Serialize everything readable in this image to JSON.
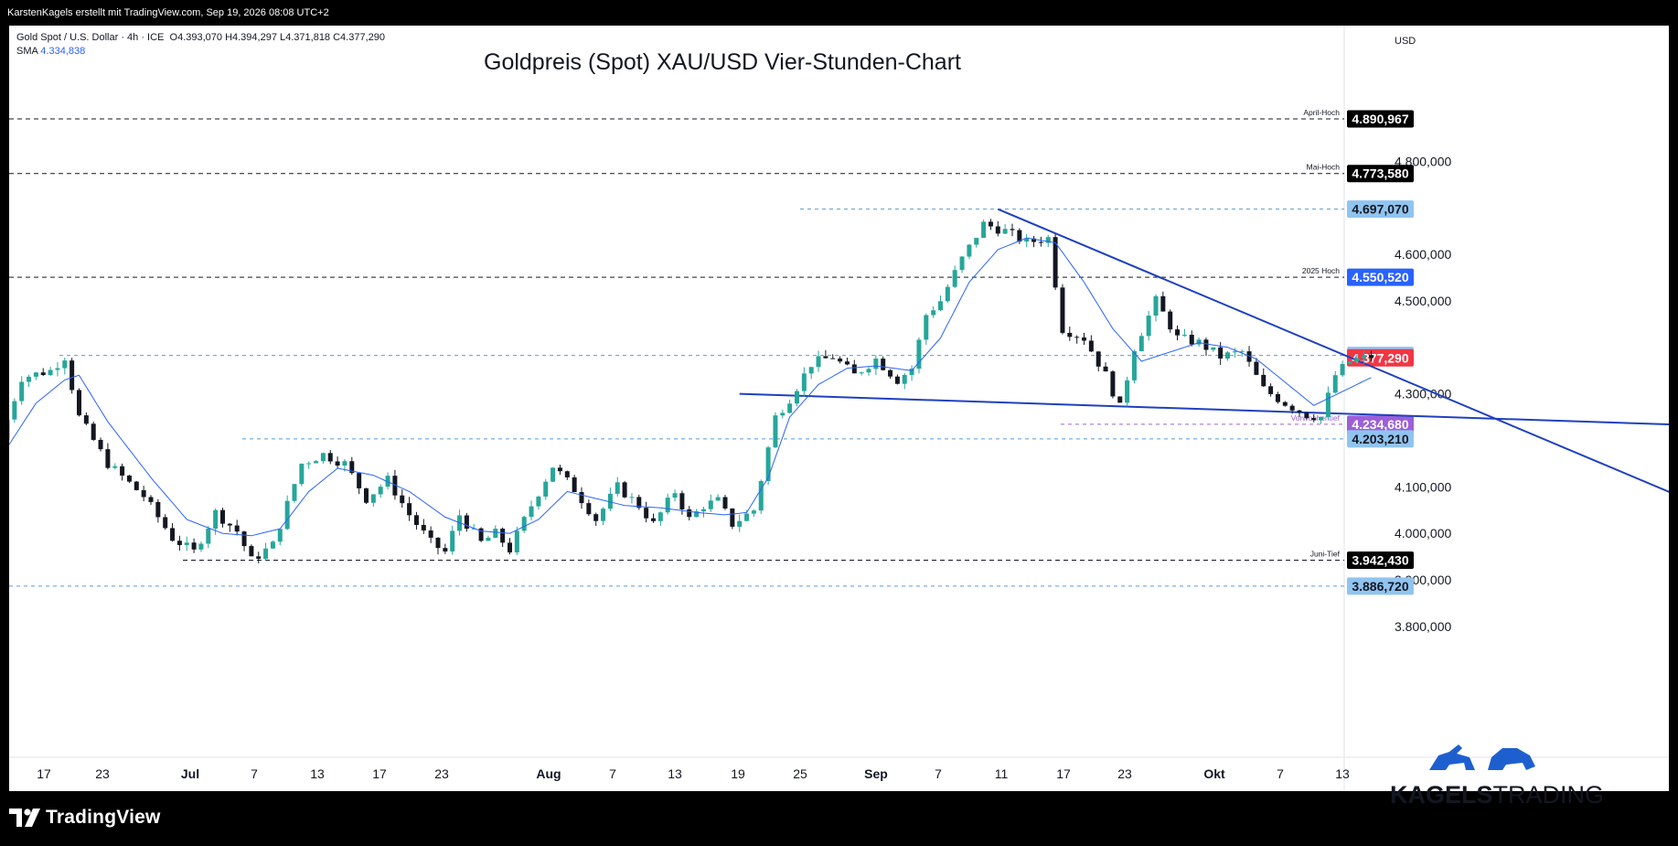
{
  "header": {
    "attribution": "KarstenKagels erstellt mit TradingView.com, Sep 19, 2026 08:08 UTC+2"
  },
  "legend": {
    "symbol": "Gold Spot / U.S. Dollar · 4h · ICE",
    "ohlc": "O4.393,070  H4.394,297  L4.371,818  C4.377,290",
    "sma_label": "SMA",
    "sma_value": "4.334,838"
  },
  "footer": {
    "tradingview_label": "TradingView"
  },
  "brand": {
    "part1": "KAGELS",
    "part2": "TRADING"
  },
  "colors": {
    "bull": "#26a69a",
    "bear": "#131722",
    "sma": "#2962ff",
    "trend": "#1e40c0",
    "dark_label": "#000000",
    "blue_label": "#2962ff",
    "lightblue_label": "#90c4f0",
    "red_label": "#f23645",
    "purple_label": "#9c5fd8"
  },
  "chart_data": {
    "type": "candlestick",
    "title": "Goldpreis (Spot) XAU/USD Vier-Stunden-Chart",
    "currency": "USD",
    "ylim": [
      3750,
      5000
    ],
    "x_ticks": [
      {
        "label": "17",
        "bold": false
      },
      {
        "label": "23",
        "bold": false
      },
      {
        "label": "Jul",
        "bold": true
      },
      {
        "label": "7",
        "bold": false
      },
      {
        "label": "13",
        "bold": false
      },
      {
        "label": "17",
        "bold": false
      },
      {
        "label": "23",
        "bold": false
      },
      {
        "label": "Aug",
        "bold": true
      },
      {
        "label": "7",
        "bold": false
      },
      {
        "label": "13",
        "bold": false
      },
      {
        "label": "19",
        "bold": false
      },
      {
        "label": "25",
        "bold": false
      },
      {
        "label": "Sep",
        "bold": true
      },
      {
        "label": "7",
        "bold": false
      },
      {
        "label": "11",
        "bold": false
      },
      {
        "label": "17",
        "bold": false
      },
      {
        "label": "23",
        "bold": false
      },
      {
        "label": "Okt",
        "bold": true
      },
      {
        "label": "7",
        "bold": false
      },
      {
        "label": "13",
        "bold": false
      }
    ],
    "y_ticks": [
      {
        "label": "4.800,000",
        "value": 4800
      },
      {
        "label": "4.600,000",
        "value": 4600
      },
      {
        "label": "4.500,000",
        "value": 4500
      },
      {
        "label": "4.300,000",
        "value": 4300
      },
      {
        "label": "4.100,000",
        "value": 4100
      },
      {
        "label": "4.000,000",
        "value": 4000
      },
      {
        "label": "3.900,000",
        "value": 3900
      },
      {
        "label": "3.800,000",
        "value": 3800
      }
    ],
    "levels": [
      {
        "value": 4890.967,
        "label": "4.890,967",
        "note": "April-Hoch",
        "style": "black",
        "box": "dark"
      },
      {
        "value": 4773.58,
        "label": "4.773,580",
        "note": "Mai-Hoch",
        "style": "black",
        "box": "dark"
      },
      {
        "value": 4697.07,
        "label": "4.697,070",
        "note": "",
        "style": "blue",
        "box": "lightblue"
      },
      {
        "value": 4550.52,
        "label": "4.550,520",
        "note": "2025 Hoch",
        "style": "black",
        "box": "blue"
      },
      {
        "value": 4382.45,
        "label": "4.382,450",
        "note": "",
        "style": "blue",
        "box": "lightblue"
      },
      {
        "value": 4377.29,
        "label": "4.377,290",
        "note": "",
        "style": "none",
        "box": "red"
      },
      {
        "value": 4234.68,
        "label": "4.234,680",
        "note": "Vorwochentief",
        "style": "purple",
        "box": "purple"
      },
      {
        "value": 4203.21,
        "label": "4.203,210",
        "note": "",
        "style": "blue",
        "box": "lightblue"
      },
      {
        "value": 3942.43,
        "label": "3.942,430",
        "note": "Juni-Tief",
        "style": "black",
        "box": "dark"
      },
      {
        "value": 3886.72,
        "label": "3.886,720",
        "note": "",
        "style": "blue",
        "box": "lightblue"
      }
    ],
    "price_path": [
      [
        0,
        4200
      ],
      [
        3,
        4335
      ],
      [
        7,
        4350
      ],
      [
        9,
        4380
      ],
      [
        11,
        4250
      ],
      [
        15,
        4150
      ],
      [
        20,
        4080
      ],
      [
        24,
        3990
      ],
      [
        27,
        3960
      ],
      [
        30,
        4045
      ],
      [
        33,
        4005
      ],
      [
        35,
        3942
      ],
      [
        38,
        3975
      ],
      [
        42,
        4150
      ],
      [
        45,
        4170
      ],
      [
        48,
        4150
      ],
      [
        51,
        4075
      ],
      [
        54,
        4115
      ],
      [
        57,
        4040
      ],
      [
        60,
        3980
      ],
      [
        62,
        3960
      ],
      [
        64,
        4040
      ],
      [
        67,
        3980
      ],
      [
        69,
        4000
      ],
      [
        71,
        3965
      ],
      [
        74,
        4060
      ],
      [
        77,
        4145
      ],
      [
        80,
        4095
      ],
      [
        83,
        4030
      ],
      [
        86,
        4100
      ],
      [
        89,
        4060
      ],
      [
        91,
        4020
      ],
      [
        94,
        4090
      ],
      [
        96,
        4030
      ],
      [
        98,
        4060
      ],
      [
        100,
        4070
      ],
      [
        102,
        4020
      ],
      [
        105,
        4050
      ],
      [
        108,
        4250
      ],
      [
        110,
        4290
      ],
      [
        113,
        4365
      ],
      [
        116,
        4380
      ],
      [
        119,
        4340
      ],
      [
        122,
        4375
      ],
      [
        125,
        4330
      ],
      [
        127,
        4355
      ],
      [
        129,
        4470
      ],
      [
        131,
        4500
      ],
      [
        134,
        4590
      ],
      [
        137,
        4665
      ],
      [
        140,
        4650
      ],
      [
        143,
        4625
      ],
      [
        146,
        4635
      ],
      [
        148,
        4440
      ],
      [
        151,
        4420
      ],
      [
        154,
        4340
      ],
      [
        156,
        4270
      ],
      [
        158,
        4400
      ],
      [
        161,
        4500
      ],
      [
        164,
        4420
      ],
      [
        167,
        4410
      ],
      [
        170,
        4380
      ],
      [
        173,
        4390
      ],
      [
        176,
        4310
      ],
      [
        179,
        4280
      ],
      [
        182,
        4255
      ],
      [
        184,
        4250
      ],
      [
        186,
        4340
      ],
      [
        188,
        4370
      ],
      [
        190,
        4377
      ]
    ],
    "sma_path": [
      [
        0,
        4185
      ],
      [
        4,
        4280
      ],
      [
        8,
        4330
      ],
      [
        10,
        4340
      ],
      [
        14,
        4240
      ],
      [
        20,
        4120
      ],
      [
        25,
        4030
      ],
      [
        30,
        4000
      ],
      [
        34,
        3995
      ],
      [
        38,
        4010
      ],
      [
        42,
        4090
      ],
      [
        46,
        4140
      ],
      [
        51,
        4125
      ],
      [
        56,
        4090
      ],
      [
        61,
        4035
      ],
      [
        66,
        4005
      ],
      [
        70,
        4000
      ],
      [
        74,
        4030
      ],
      [
        78,
        4090
      ],
      [
        82,
        4075
      ],
      [
        86,
        4060
      ],
      [
        91,
        4055
      ],
      [
        96,
        4045
      ],
      [
        100,
        4040
      ],
      [
        103,
        4045
      ],
      [
        106,
        4120
      ],
      [
        109,
        4250
      ],
      [
        113,
        4320
      ],
      [
        117,
        4355
      ],
      [
        121,
        4360
      ],
      [
        126,
        4350
      ],
      [
        130,
        4420
      ],
      [
        134,
        4540
      ],
      [
        138,
        4610
      ],
      [
        142,
        4635
      ],
      [
        146,
        4625
      ],
      [
        150,
        4540
      ],
      [
        154,
        4440
      ],
      [
        158,
        4370
      ],
      [
        162,
        4390
      ],
      [
        166,
        4410
      ],
      [
        170,
        4400
      ],
      [
        174,
        4375
      ],
      [
        178,
        4325
      ],
      [
        182,
        4275
      ],
      [
        186,
        4305
      ],
      [
        190,
        4335
      ]
    ],
    "trendlines": [
      {
        "name": "resistance",
        "x1": 138,
        "y1": 4697,
        "x2": 236,
        "y2": 4060
      },
      {
        "name": "support",
        "x1": 102,
        "y1": 4300,
        "x2": 236,
        "y2": 4232
      }
    ]
  }
}
